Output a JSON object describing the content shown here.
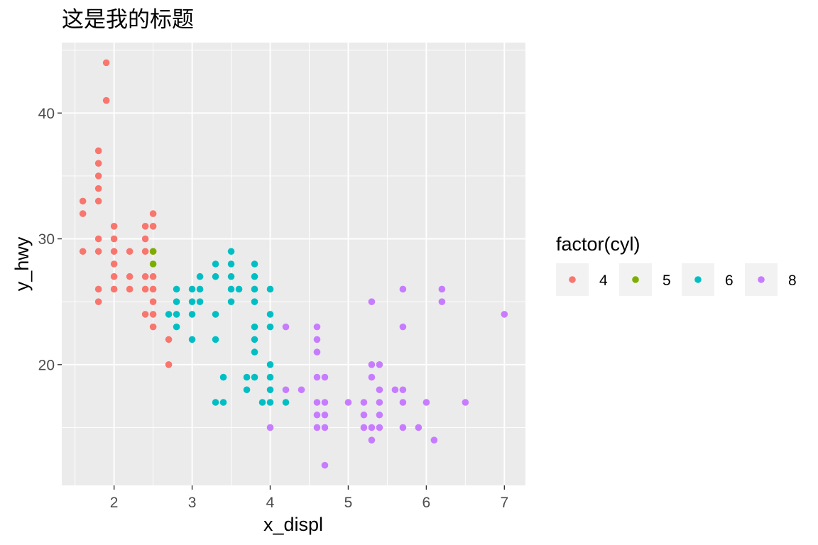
{
  "chart_data": {
    "type": "scatter",
    "title": "这是我的标题",
    "xlabel": "x_displ",
    "ylabel": "y_hwy",
    "xlim": [
      1.33,
      7.27
    ],
    "ylim": [
      10.4,
      45.6
    ],
    "x_ticks": [
      2,
      3,
      4,
      5,
      6,
      7
    ],
    "y_ticks": [
      20,
      30,
      40
    ],
    "grid": true,
    "legend": {
      "title": "factor(cyl)",
      "placement": "right"
    },
    "colors": {
      "panel": "#EBEBEB",
      "grid": "#FFFFFF",
      "tick_text": "#4D4D4D",
      "axis_title": "#000000",
      "legend_key_bg": "#F2F2F2"
    },
    "series": [
      {
        "name": "4",
        "color": "#F8766D",
        "points": [
          [
            1.9,
            44
          ],
          [
            1.9,
            41
          ],
          [
            1.8,
            37
          ],
          [
            1.8,
            36
          ],
          [
            1.8,
            35
          ],
          [
            1.8,
            34
          ],
          [
            1.8,
            33
          ],
          [
            1.6,
            33
          ],
          [
            1.6,
            32
          ],
          [
            1.6,
            29
          ],
          [
            1.8,
            30
          ],
          [
            1.8,
            29
          ],
          [
            1.8,
            26
          ],
          [
            1.8,
            25
          ],
          [
            2.0,
            31
          ],
          [
            2.0,
            30
          ],
          [
            2.0,
            29
          ],
          [
            2.0,
            28
          ],
          [
            2.0,
            27
          ],
          [
            2.0,
            26
          ],
          [
            2.2,
            29
          ],
          [
            2.2,
            27
          ],
          [
            2.2,
            26
          ],
          [
            2.4,
            31
          ],
          [
            2.4,
            30
          ],
          [
            2.4,
            29
          ],
          [
            2.4,
            27
          ],
          [
            2.4,
            26
          ],
          [
            2.4,
            24
          ],
          [
            2.5,
            32
          ],
          [
            2.5,
            31
          ],
          [
            2.5,
            29
          ],
          [
            2.5,
            27
          ],
          [
            2.5,
            26
          ],
          [
            2.5,
            25
          ],
          [
            2.5,
            24
          ],
          [
            2.5,
            23
          ],
          [
            2.7,
            22
          ],
          [
            2.7,
            20
          ]
        ]
      },
      {
        "name": "5",
        "color": "#7CAE00",
        "points": [
          [
            2.5,
            29
          ],
          [
            2.5,
            28
          ]
        ]
      },
      {
        "name": "6",
        "color": "#00BFC4",
        "points": [
          [
            2.7,
            24
          ],
          [
            2.8,
            26
          ],
          [
            2.8,
            25
          ],
          [
            2.8,
            24
          ],
          [
            2.8,
            23
          ],
          [
            3.0,
            26
          ],
          [
            3.0,
            25
          ],
          [
            3.0,
            24
          ],
          [
            3.0,
            22
          ],
          [
            3.1,
            27
          ],
          [
            3.1,
            26
          ],
          [
            3.1,
            25
          ],
          [
            3.3,
            28
          ],
          [
            3.3,
            27
          ],
          [
            3.3,
            24
          ],
          [
            3.3,
            22
          ],
          [
            3.3,
            17
          ],
          [
            3.4,
            19
          ],
          [
            3.4,
            17
          ],
          [
            3.5,
            29
          ],
          [
            3.5,
            28
          ],
          [
            3.5,
            27
          ],
          [
            3.5,
            26
          ],
          [
            3.5,
            25
          ],
          [
            3.6,
            26
          ],
          [
            3.7,
            19
          ],
          [
            3.7,
            18
          ],
          [
            3.8,
            28
          ],
          [
            3.8,
            27
          ],
          [
            3.8,
            26
          ],
          [
            3.8,
            25
          ],
          [
            3.8,
            23
          ],
          [
            3.8,
            22
          ],
          [
            3.8,
            21
          ],
          [
            3.8,
            19
          ],
          [
            3.9,
            17
          ],
          [
            4.0,
            26
          ],
          [
            4.0,
            24
          ],
          [
            4.0,
            23
          ],
          [
            4.0,
            20
          ],
          [
            4.0,
            19
          ],
          [
            4.0,
            18
          ],
          [
            4.0,
            17
          ],
          [
            4.2,
            17
          ]
        ]
      },
      {
        "name": "8",
        "color": "#C77CFF",
        "points": [
          [
            4.0,
            15
          ],
          [
            4.2,
            23
          ],
          [
            4.2,
            18
          ],
          [
            4.4,
            18
          ],
          [
            4.6,
            23
          ],
          [
            4.6,
            22
          ],
          [
            4.6,
            21
          ],
          [
            4.6,
            19
          ],
          [
            4.6,
            17
          ],
          [
            4.6,
            16
          ],
          [
            4.6,
            15
          ],
          [
            4.7,
            19
          ],
          [
            4.7,
            17
          ],
          [
            4.7,
            16
          ],
          [
            4.7,
            15
          ],
          [
            4.7,
            12
          ],
          [
            5.0,
            17
          ],
          [
            5.2,
            17
          ],
          [
            5.2,
            16
          ],
          [
            5.2,
            15
          ],
          [
            5.3,
            25
          ],
          [
            5.3,
            20
          ],
          [
            5.3,
            19
          ],
          [
            5.3,
            15
          ],
          [
            5.3,
            14
          ],
          [
            5.4,
            20
          ],
          [
            5.4,
            18
          ],
          [
            5.4,
            17
          ],
          [
            5.4,
            16
          ],
          [
            5.4,
            15
          ],
          [
            5.6,
            18
          ],
          [
            5.7,
            26
          ],
          [
            5.7,
            23
          ],
          [
            5.7,
            18
          ],
          [
            5.7,
            17
          ],
          [
            5.7,
            15
          ],
          [
            5.9,
            15
          ],
          [
            6.0,
            17
          ],
          [
            6.1,
            14
          ],
          [
            6.2,
            26
          ],
          [
            6.2,
            25
          ],
          [
            6.5,
            17
          ],
          [
            7.0,
            24
          ]
        ]
      }
    ]
  }
}
